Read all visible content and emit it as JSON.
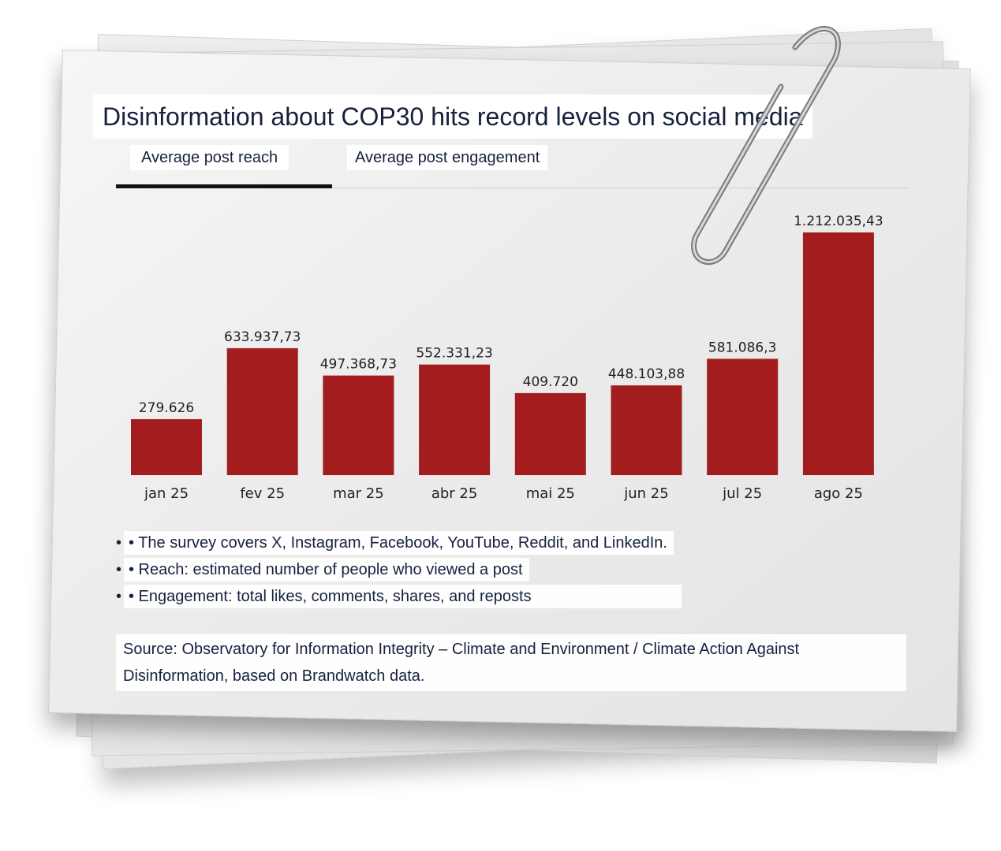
{
  "title": "Disinformation about COP30 hits record levels on social media",
  "tabs": [
    {
      "label": "Average post reach",
      "active": true
    },
    {
      "label": "Average post engagement",
      "active": false
    }
  ],
  "chart_data": {
    "type": "bar",
    "title": "Disinformation about COP30 hits record levels on social media",
    "categories": [
      "jan 25",
      "fev 25",
      "mar 25",
      "abr 25",
      "mai 25",
      "jun 25",
      "jul 25",
      "ago 25"
    ],
    "values": [
      279626,
      633937.73,
      497368.73,
      552331.23,
      409720,
      448103.88,
      581086.3,
      1212035.43
    ],
    "value_labels": [
      "279.626",
      "633.937,73",
      "497.368,73",
      "552.331,23",
      "409.720",
      "448.103,88",
      "581.086,3",
      "1.212.035,43"
    ],
    "ylim": [
      0,
      1212035.43
    ],
    "xlabel": "",
    "ylabel": "",
    "bar_color": "#a31d1f",
    "grid": false
  },
  "notes": [
    {
      "bullet": "•",
      "text": "• The survey covers X, Instagram, Facebook, YouTube, Reddit, and LinkedIn."
    },
    {
      "bullet": "•",
      "text": "• Reach: estimated number of people who viewed a post"
    },
    {
      "bullet": "•",
      "text": "• Engagement: total likes, comments, shares, and reposts"
    }
  ],
  "source": "Source: Observatory for Information Integrity – Climate and Environment / Climate Action Against Disinformation, based on Brandwatch data.",
  "colors": {
    "text": "#16213e",
    "bar": "#a31d1f",
    "paper": "#eeeeee"
  }
}
